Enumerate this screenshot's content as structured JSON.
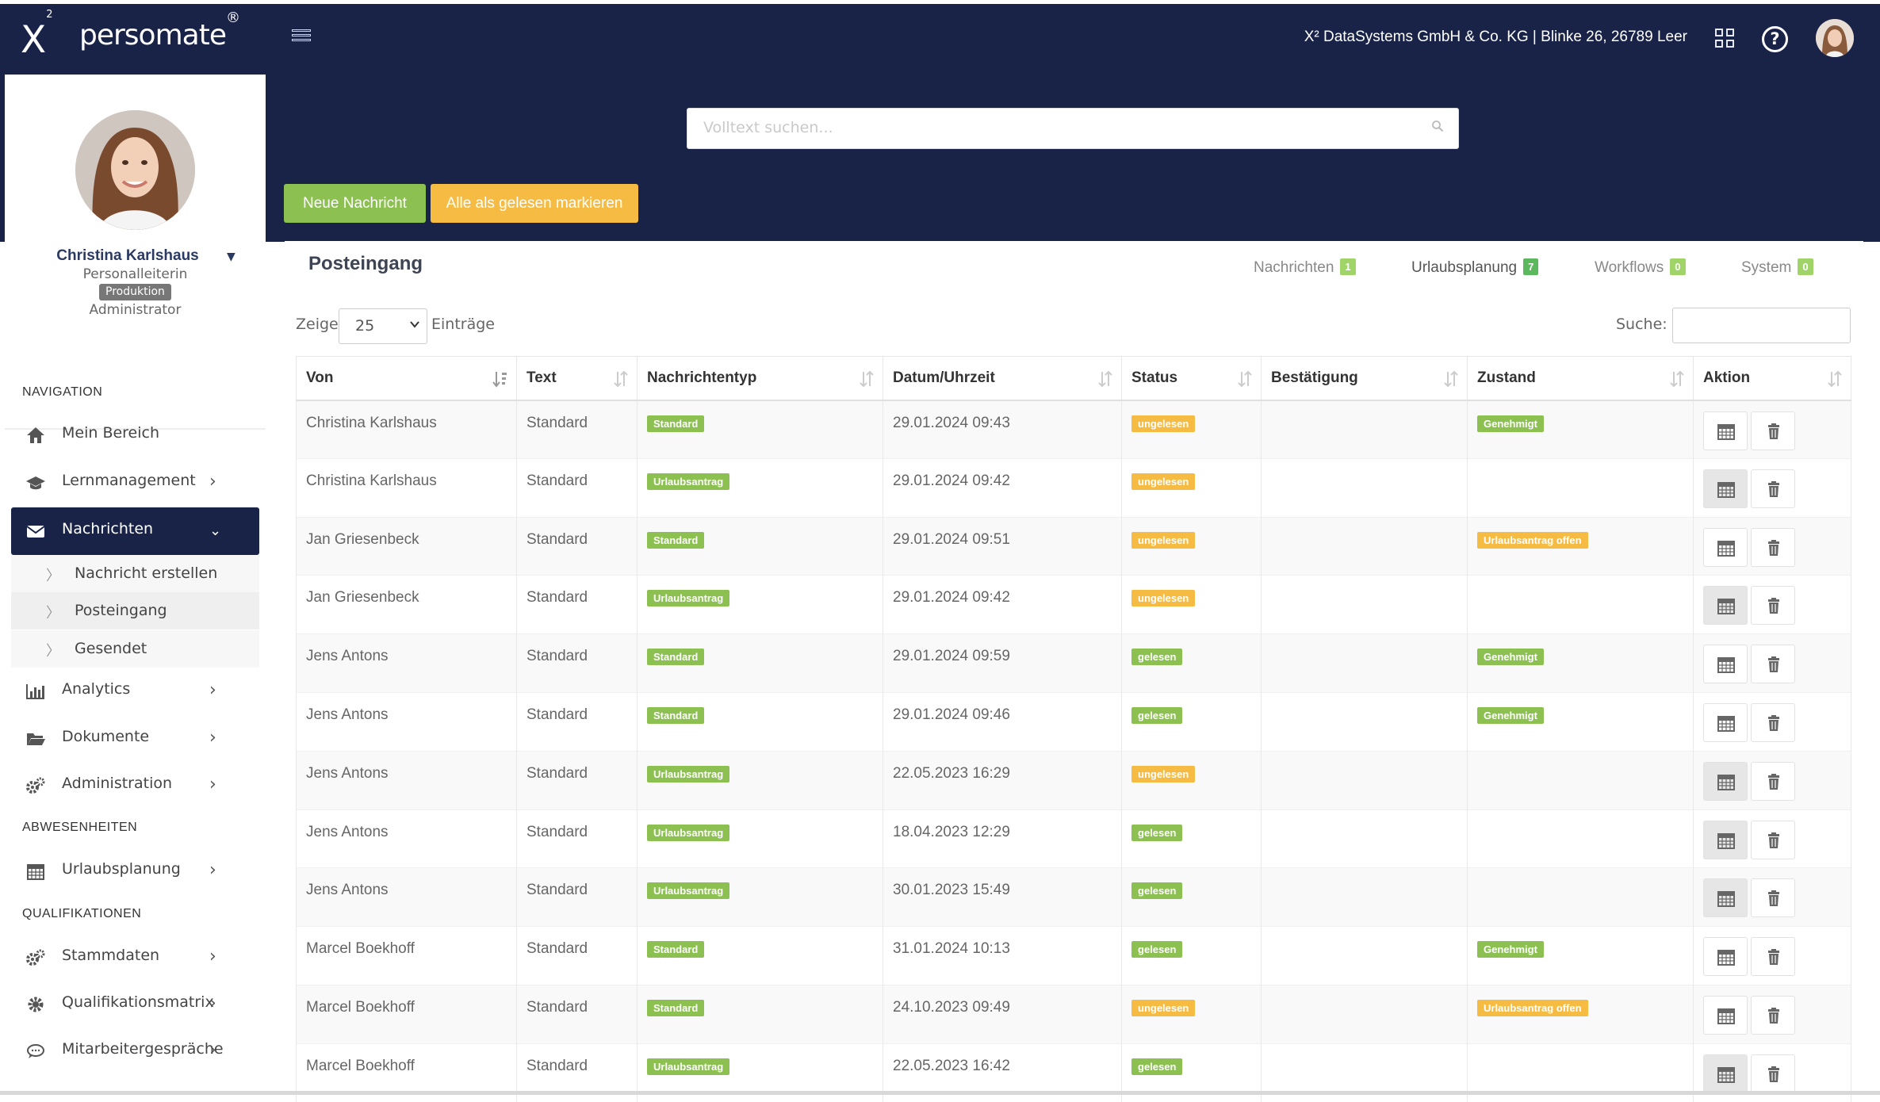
{
  "header": {
    "logo_x": "X",
    "logo_sup": "2",
    "brand": "persomate",
    "brand_reg": "®",
    "company": "X² DataSystems GmbH & Co. KG | Blinke 26, 26789 Leer",
    "help_glyph": "?"
  },
  "search": {
    "placeholder": "Volltext suchen..."
  },
  "actions": {
    "new_message": "Neue Nachricht",
    "mark_all_read": "Alle als gelesen markieren"
  },
  "profile": {
    "name": "Christina Karlshaus",
    "role": "Personalleiterin",
    "badge": "Produktion",
    "level": "Administrator"
  },
  "sidebar": {
    "sections": {
      "navigation": "NAVIGATION",
      "absences": "ABWESENHEITEN",
      "qualifications": "QUALIFIKATIONEN"
    },
    "items": {
      "mein_bereich": "Mein Bereich",
      "lernmanagement": "Lernmanagement",
      "nachrichten": "Nachrichten",
      "analytics": "Analytics",
      "dokumente": "Dokumente",
      "administration": "Administration",
      "urlaubsplanung": "Urlaubsplanung",
      "stammdaten": "Stammdaten",
      "qualifikationsmatrix": "Qualifikationsmatrix",
      "mitarbeitergespraeche": "Mitarbeitergespräche"
    },
    "sub": {
      "erstellen": "Nachricht erstellen",
      "posteingang": "Posteingang",
      "gesendet": "Gesendet"
    }
  },
  "panel": {
    "title": "Posteingang",
    "tabs": [
      {
        "label": "Nachrichten",
        "count": "1"
      },
      {
        "label": "Urlaubsplanung",
        "count": "7"
      },
      {
        "label": "Workflows",
        "count": "0"
      },
      {
        "label": "System",
        "count": "0"
      }
    ],
    "length": {
      "prefix": "Zeige",
      "value": "25",
      "suffix": "Einträge"
    },
    "filter_label": "Suche:"
  },
  "table": {
    "columns": [
      "Von",
      "Text",
      "Nachrichtentyp",
      "Datum/Uhrzeit",
      "Status",
      "Bestätigung",
      "Zustand",
      "Aktion"
    ],
    "rows": [
      {
        "von": "Christina Karlshaus",
        "text": "Standard",
        "typ": "Standard",
        "datum": "29.01.2024 09:43",
        "status": "ungelesen",
        "zustand": "Genehmigt"
      },
      {
        "von": "Christina Karlshaus",
        "text": "Standard",
        "typ": "Urlaubsantrag",
        "datum": "29.01.2024 09:42",
        "status": "ungelesen",
        "zustand": ""
      },
      {
        "von": "Jan Griesenbeck",
        "text": "Standard",
        "typ": "Standard",
        "datum": "29.01.2024 09:51",
        "status": "ungelesen",
        "zustand": "Urlaubsantrag offen"
      },
      {
        "von": "Jan Griesenbeck",
        "text": "Standard",
        "typ": "Urlaubsantrag",
        "datum": "29.01.2024 09:42",
        "status": "ungelesen",
        "zustand": ""
      },
      {
        "von": "Jens Antons",
        "text": "Standard",
        "typ": "Standard",
        "datum": "29.01.2024 09:59",
        "status": "gelesen",
        "zustand": "Genehmigt"
      },
      {
        "von": "Jens Antons",
        "text": "Standard",
        "typ": "Standard",
        "datum": "29.01.2024 09:46",
        "status": "gelesen",
        "zustand": "Genehmigt"
      },
      {
        "von": "Jens Antons",
        "text": "Standard",
        "typ": "Urlaubsantrag",
        "datum": "22.05.2023 16:29",
        "status": "ungelesen",
        "zustand": ""
      },
      {
        "von": "Jens Antons",
        "text": "Standard",
        "typ": "Urlaubsantrag",
        "datum": "18.04.2023 12:29",
        "status": "gelesen",
        "zustand": ""
      },
      {
        "von": "Jens Antons",
        "text": "Standard",
        "typ": "Urlaubsantrag",
        "datum": "30.01.2023 15:49",
        "status": "gelesen",
        "zustand": ""
      },
      {
        "von": "Marcel Boekhoff",
        "text": "Standard",
        "typ": "Standard",
        "datum": "31.01.2024 10:13",
        "status": "gelesen",
        "zustand": "Genehmigt"
      },
      {
        "von": "Marcel Boekhoff",
        "text": "Standard",
        "typ": "Standard",
        "datum": "24.10.2023 09:49",
        "status": "ungelesen",
        "zustand": "Urlaubsantrag offen"
      },
      {
        "von": "Marcel Boekhoff",
        "text": "Standard",
        "typ": "Urlaubsantrag",
        "datum": "22.05.2023 16:42",
        "status": "gelesen",
        "zustand": ""
      }
    ]
  },
  "colors": {
    "navy": "#192348",
    "green": "#8cc152",
    "orange": "#f6bb42",
    "tab_badge": "#a0d468"
  }
}
